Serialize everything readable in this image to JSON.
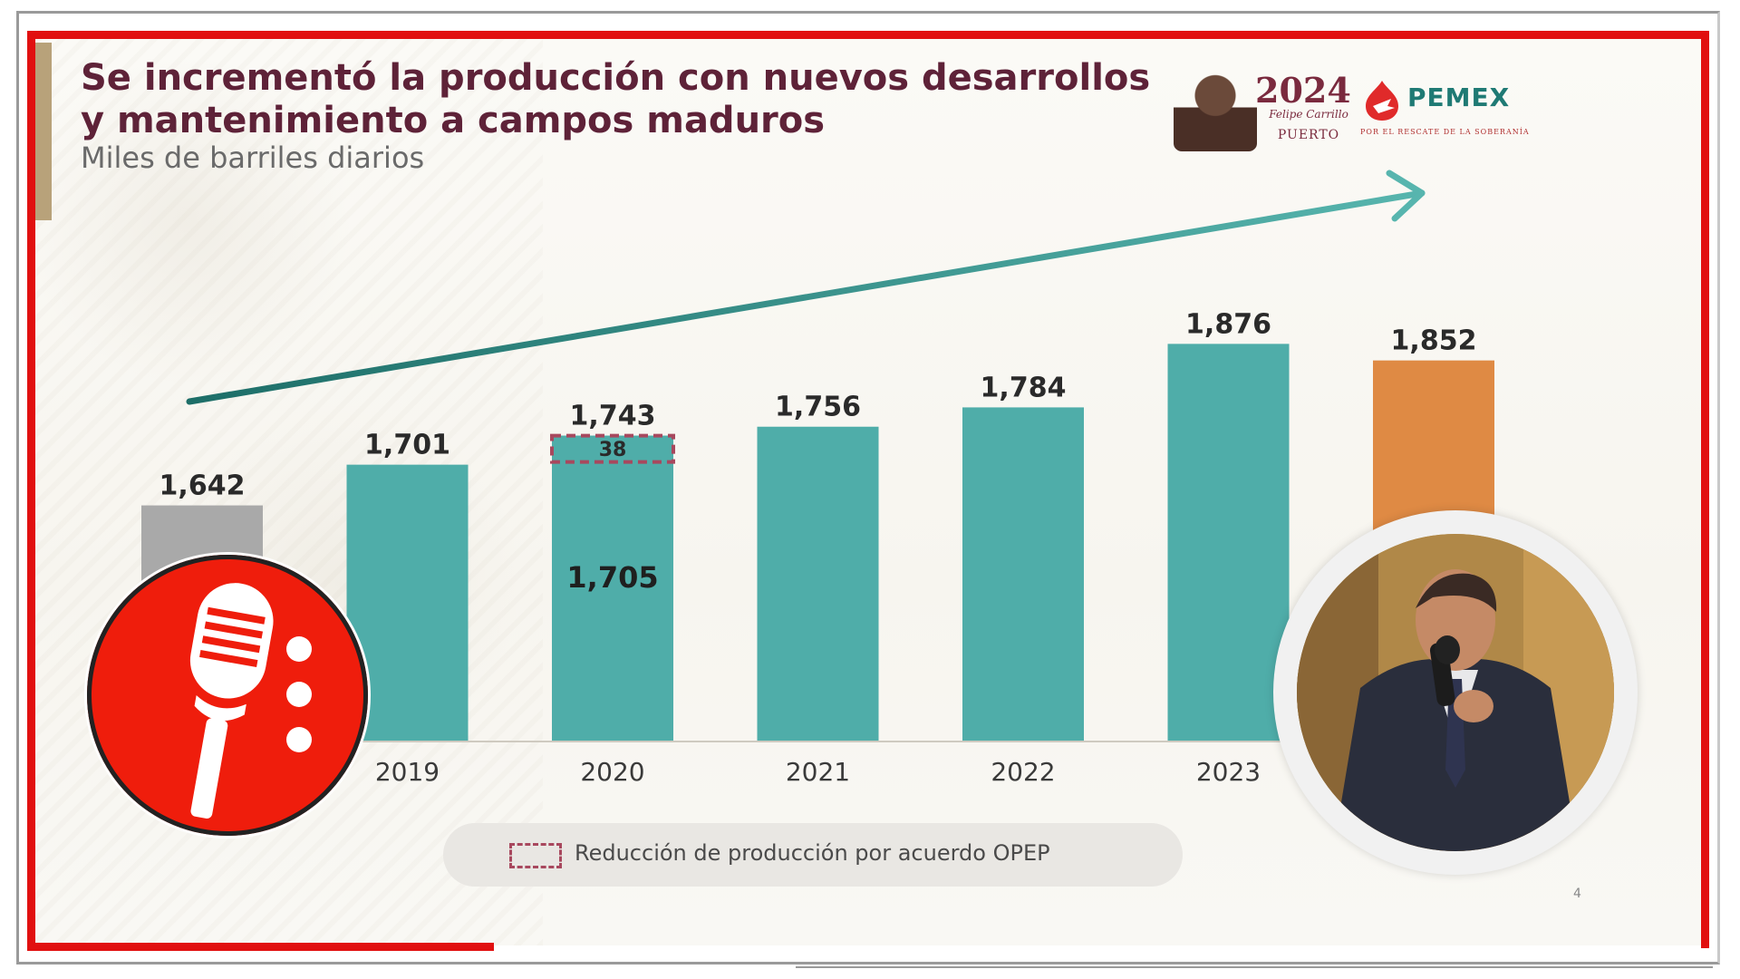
{
  "slide": {
    "title": "Se incrementó la producción con nuevos desarrollos y mantenimiento a campos maduros",
    "subtitle": "Miles de barriles diarios",
    "page_number": "4"
  },
  "logos": {
    "gov_year": "2024",
    "gov_name": "Felipe Carrillo",
    "gov_place": "PUERTO",
    "pemex_word": "PEMEX",
    "pemex_tagline": "POR EL RESCATE DE LA SOBERANÍA"
  },
  "legend": {
    "label": "Reducción de producción por acuerdo OPEP"
  },
  "colors": {
    "title": "#5e2238",
    "teal": "#4fada9",
    "gray": "#a9a9a9",
    "orange": "#df8a44",
    "dashed": "#a8485e",
    "frame_red": "#e11010",
    "badge_red": "#ef1d0c"
  },
  "icons": {
    "badge": "microphone-icon",
    "trend": "trend-arrow-icon"
  },
  "chart_data": {
    "type": "bar",
    "title": "Se incrementó la producción con nuevos desarrollos y mantenimiento a campos maduros",
    "subtitle": "Miles de barriles diarios",
    "ylabel": "",
    "xlabel": "",
    "categories": [
      "",
      "2019",
      "2020",
      "2021",
      "2022",
      "2023",
      ""
    ],
    "values": [
      1642,
      1701,
      1743,
      1756,
      1784,
      1876,
      1852
    ],
    "value_labels": [
      "1,642",
      "1,701",
      "1,743",
      "1,756",
      "1,784",
      "1,876",
      "1,852"
    ],
    "bar_colors": [
      "#a9a9a9",
      "#4fada9",
      "#4fada9",
      "#4fada9",
      "#4fada9",
      "#4fada9",
      "#df8a44"
    ],
    "segments": {
      "category_index": 2,
      "base_value": 1705,
      "base_label": "1,705",
      "reduction_value": 38,
      "reduction_label": "38"
    },
    "ylim": [
      1300,
      1950
    ],
    "grid": false,
    "legend_position": "bottom-center",
    "trend_arrow": true
  }
}
